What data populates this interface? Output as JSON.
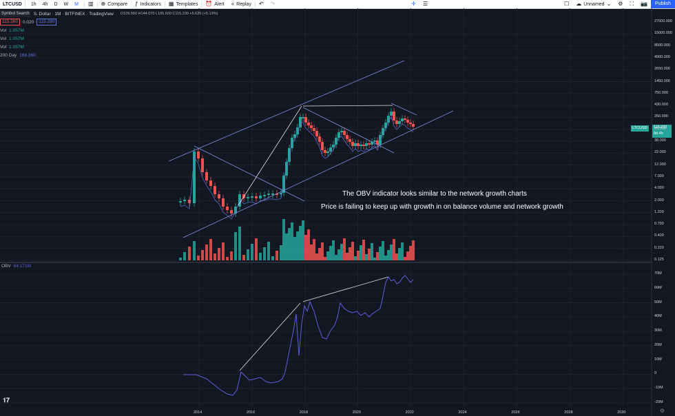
{
  "toolbar": {
    "symbol": "LTCUSD",
    "intervals": [
      "1h",
      "4h",
      "D",
      "W",
      "M"
    ],
    "active_interval": "M",
    "compare": "Compare",
    "indicators": "Indicators",
    "templates": "Templates",
    "alert": "Alert",
    "replay": "Replay",
    "layout_name": "Unnamed",
    "publish": "Publish"
  },
  "legend": {
    "symbol_search": "Symbol Search",
    "title": "S. Dollar · 1M · BITFINEX · TradingView",
    "ohlc": "O109.550 H144.070 L105.500 C115.230 +5.620 (+5.13%)",
    "bid": "115.260",
    "spread": "0.020",
    "ask": "115.280",
    "vol_rows": [
      {
        "label": "Vol",
        "value": "1.057M"
      },
      {
        "label": "Vol",
        "value": "1.057M"
      },
      {
        "label": "Vol",
        "value": "1.057M"
      }
    ],
    "ma_label": "200 Day",
    "ma_value": "168.360"
  },
  "price_axis": [
    "27000.000",
    "15000.000",
    "8500.000",
    "4900.000",
    "2650.000",
    "1450.000",
    "750.000",
    "430.000",
    "250.000",
    "70.000",
    "38.000",
    "22.000",
    "12.000",
    "7.000",
    "4.000",
    "2.000",
    "1.200",
    "0.700",
    "0.400",
    "0.220",
    "0.125"
  ],
  "last_price": {
    "symbol": "LTCUSD",
    "value": "115.230",
    "countdown": "9d 4h"
  },
  "obv": {
    "label": "OBV",
    "value": "64.171M",
    "axis": [
      "70M",
      "60M",
      "50M",
      "40M",
      "30M",
      "20M",
      "10M",
      "0",
      "-10M",
      "-20M"
    ]
  },
  "time_axis": [
    "2014",
    "2016",
    "2018",
    "2020",
    "2022",
    "2024",
    "2026",
    "2028",
    "2030"
  ],
  "annotations": [
    "The OBV indicator looks similar to the network growth charts",
    "Price is failing to keep up with growth in on balance volume and network growth"
  ],
  "colors": {
    "up": "#26a69a",
    "down": "#ef5350",
    "obv_line": "#5d5fde",
    "trendline": "#7b8fd9",
    "background": "#131722",
    "accent": "#2962ff"
  },
  "icons": [
    "candles-icon",
    "plus-circle-icon",
    "indicators-icon",
    "templates-icon",
    "alert-icon",
    "replay-icon",
    "undo-icon",
    "redo-icon",
    "crosshair-icon",
    "menu-icon",
    "window-icon",
    "cloud-icon",
    "gear-icon",
    "fullscreen-icon",
    "camera-icon",
    "tradingview-logo-icon"
  ]
}
